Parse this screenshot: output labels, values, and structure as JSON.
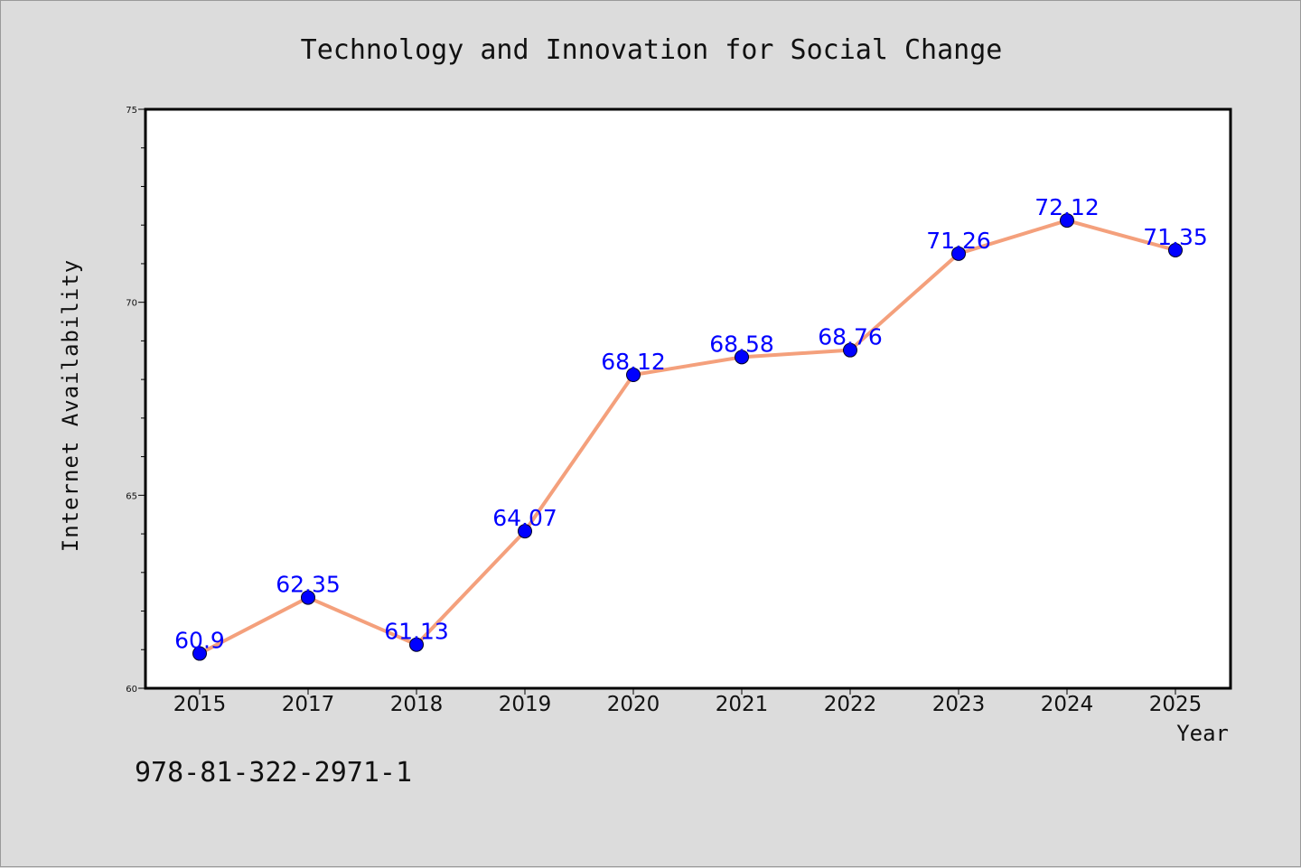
{
  "colors": {
    "background": "#dcdcdc",
    "plot_background": "#ffffff",
    "line": "#f4a07c",
    "marker": "#0000ff",
    "label": "#0000ff"
  },
  "footer": {
    "isbn": "978-81-322-2971-1"
  },
  "chart_data": {
    "type": "line",
    "title": "Technology and Innovation for Social Change",
    "xlabel": "Year",
    "ylabel": "Internet Availability",
    "categories": [
      "2015",
      "2017",
      "2018",
      "2019",
      "2020",
      "2021",
      "2022",
      "2023",
      "2024",
      "2025"
    ],
    "series": [
      {
        "values": [
          60.9,
          62.35,
          61.13,
          64.07,
          68.12,
          68.58,
          68.76,
          71.26,
          72.12,
          71.35
        ],
        "labels": [
          "60.9",
          "62.35",
          "61.13",
          "64.07",
          "68.12",
          "68.58",
          "68.76",
          "71.26",
          "72.12",
          "71.35"
        ]
      }
    ],
    "ylim": [
      60,
      75
    ],
    "yticks": [
      "60",
      "65",
      "70",
      "75"
    ],
    "grid": false,
    "legend": "none"
  }
}
